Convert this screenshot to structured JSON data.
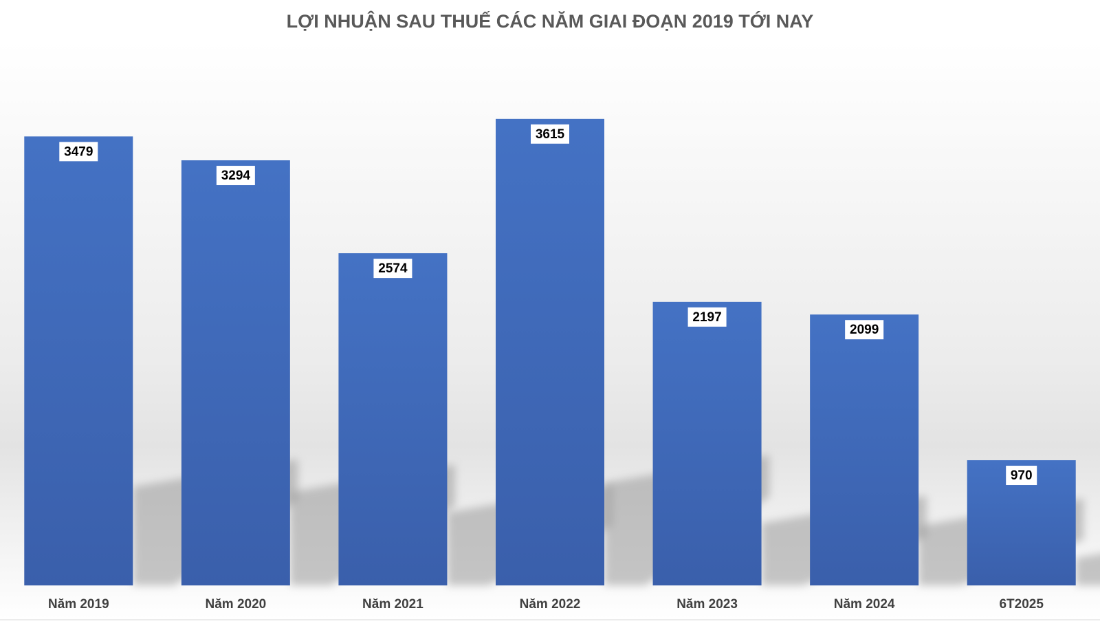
{
  "chart_data": {
    "type": "bar",
    "title": "LỢI NHUẬN SAU THUẾ CÁC NĂM GIAI ĐOẠN 2019 TỚI NAY",
    "categories": [
      "Năm 2019",
      "Năm 2020",
      "Năm 2021",
      "Năm 2022",
      "Năm 2023",
      "Năm 2024",
      "6T2025"
    ],
    "values": [
      3479,
      3294,
      2574,
      3615,
      2197,
      2099,
      970
    ],
    "data_labels": [
      "3479",
      "3294",
      "2574",
      "3615",
      "2197",
      "2099",
      "970"
    ],
    "xlabel": "",
    "ylabel": "",
    "ylim": [
      0,
      4000
    ],
    "grid": false,
    "legend": "none",
    "colors": {
      "bar_top": "#4472c4",
      "bar_bottom": "#3a5fab",
      "title": "#595959",
      "tick_label": "#404040",
      "data_label_bg": "#ffffff",
      "data_label_text": "#000000",
      "background_mid": "#e6e6e6"
    }
  }
}
